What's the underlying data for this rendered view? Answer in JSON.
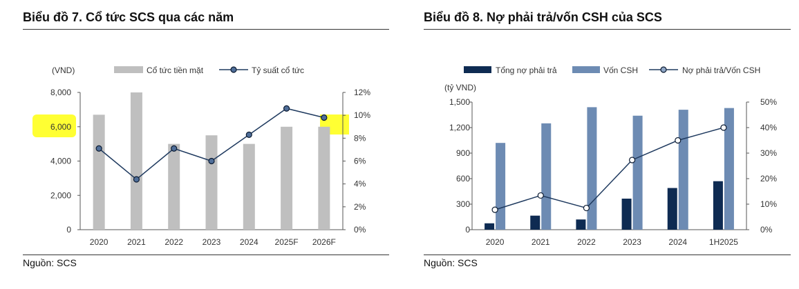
{
  "charts": [
    {
      "id": "chart7",
      "title": "Biểu đồ 7. Cổ tức SCS qua các năm",
      "source": "Nguồn: SCS",
      "left_unit": "(VND)",
      "legend": {
        "bar": "Cổ tức tiền mặt",
        "line": "Tỷ suất cổ tức"
      },
      "left_ticks": [
        "8,000",
        "6,000",
        "4,000",
        "2,000",
        "0"
      ],
      "right_ticks": [
        "12%",
        "10%",
        "8%",
        "6%",
        "4%",
        "2%",
        "0%"
      ],
      "categories": [
        "2020",
        "2021",
        "2022",
        "2023",
        "2024",
        "2025F",
        "2026F"
      ]
    },
    {
      "id": "chart8",
      "title": "Biểu đồ 8. Nợ phải trả/vốn CSH của SCS",
      "source": "Nguồn: SCS",
      "left_unit": "(tỷ VND)",
      "legend": {
        "bar1": "Tổng nợ phải trả",
        "bar2": "Vốn CSH",
        "line": "Nợ phải trả/Vốn CSH"
      },
      "left_ticks": [
        "1,500",
        "1,200",
        "900",
        "600",
        "300",
        "0"
      ],
      "right_ticks": [
        "50%",
        "40%",
        "30%",
        "20%",
        "10%",
        "0%"
      ],
      "categories": [
        "2020",
        "2021",
        "2022",
        "2023",
        "2024",
        "1H2025"
      ]
    }
  ],
  "colors": {
    "gray_bar": "#bfbfbf",
    "navy": "#0e2b52",
    "steel": "#6d8bb3",
    "line": "#1f3a5f",
    "highlight": "#ffff33"
  },
  "chart_data": [
    {
      "type": "bar",
      "title": "Biểu đồ 7. Cổ tức SCS qua các năm",
      "categories": [
        "2020",
        "2021",
        "2022",
        "2023",
        "2024",
        "2025F",
        "2026F"
      ],
      "series": [
        {
          "name": "Cổ tức tiền mặt",
          "axis": "left",
          "type": "bar",
          "values": [
            6700,
            8000,
            5000,
            5500,
            5000,
            6000,
            6000
          ]
        },
        {
          "name": "Tỷ suất cổ tức",
          "axis": "right",
          "type": "line",
          "values": [
            7.1,
            4.4,
            7.1,
            6.0,
            8.3,
            10.6,
            9.8
          ]
        }
      ],
      "ylabel": "(VND)",
      "ylim": [
        0,
        8000
      ],
      "y2lim": [
        0,
        12
      ],
      "highlighted": [
        "6,000",
        "2026F"
      ]
    },
    {
      "type": "bar",
      "title": "Biểu đồ 8. Nợ phải trả/vốn CSH của SCS",
      "categories": [
        "2020",
        "2021",
        "2022",
        "2023",
        "2024",
        "1H2025"
      ],
      "series": [
        {
          "name": "Tổng nợ phải trả",
          "axis": "left",
          "type": "bar",
          "values": [
            75,
            165,
            120,
            365,
            490,
            570
          ]
        },
        {
          "name": "Vốn CSH",
          "axis": "left",
          "type": "bar",
          "values": [
            1020,
            1250,
            1440,
            1340,
            1410,
            1430
          ]
        },
        {
          "name": "Nợ phải trả/Vốn CSH",
          "axis": "right",
          "type": "line",
          "values": [
            7.8,
            13.4,
            8.5,
            27.3,
            35.0,
            40.0
          ]
        }
      ],
      "ylabel": "(tỷ VND)",
      "ylim": [
        0,
        1500
      ],
      "y2lim": [
        0,
        50
      ]
    }
  ]
}
